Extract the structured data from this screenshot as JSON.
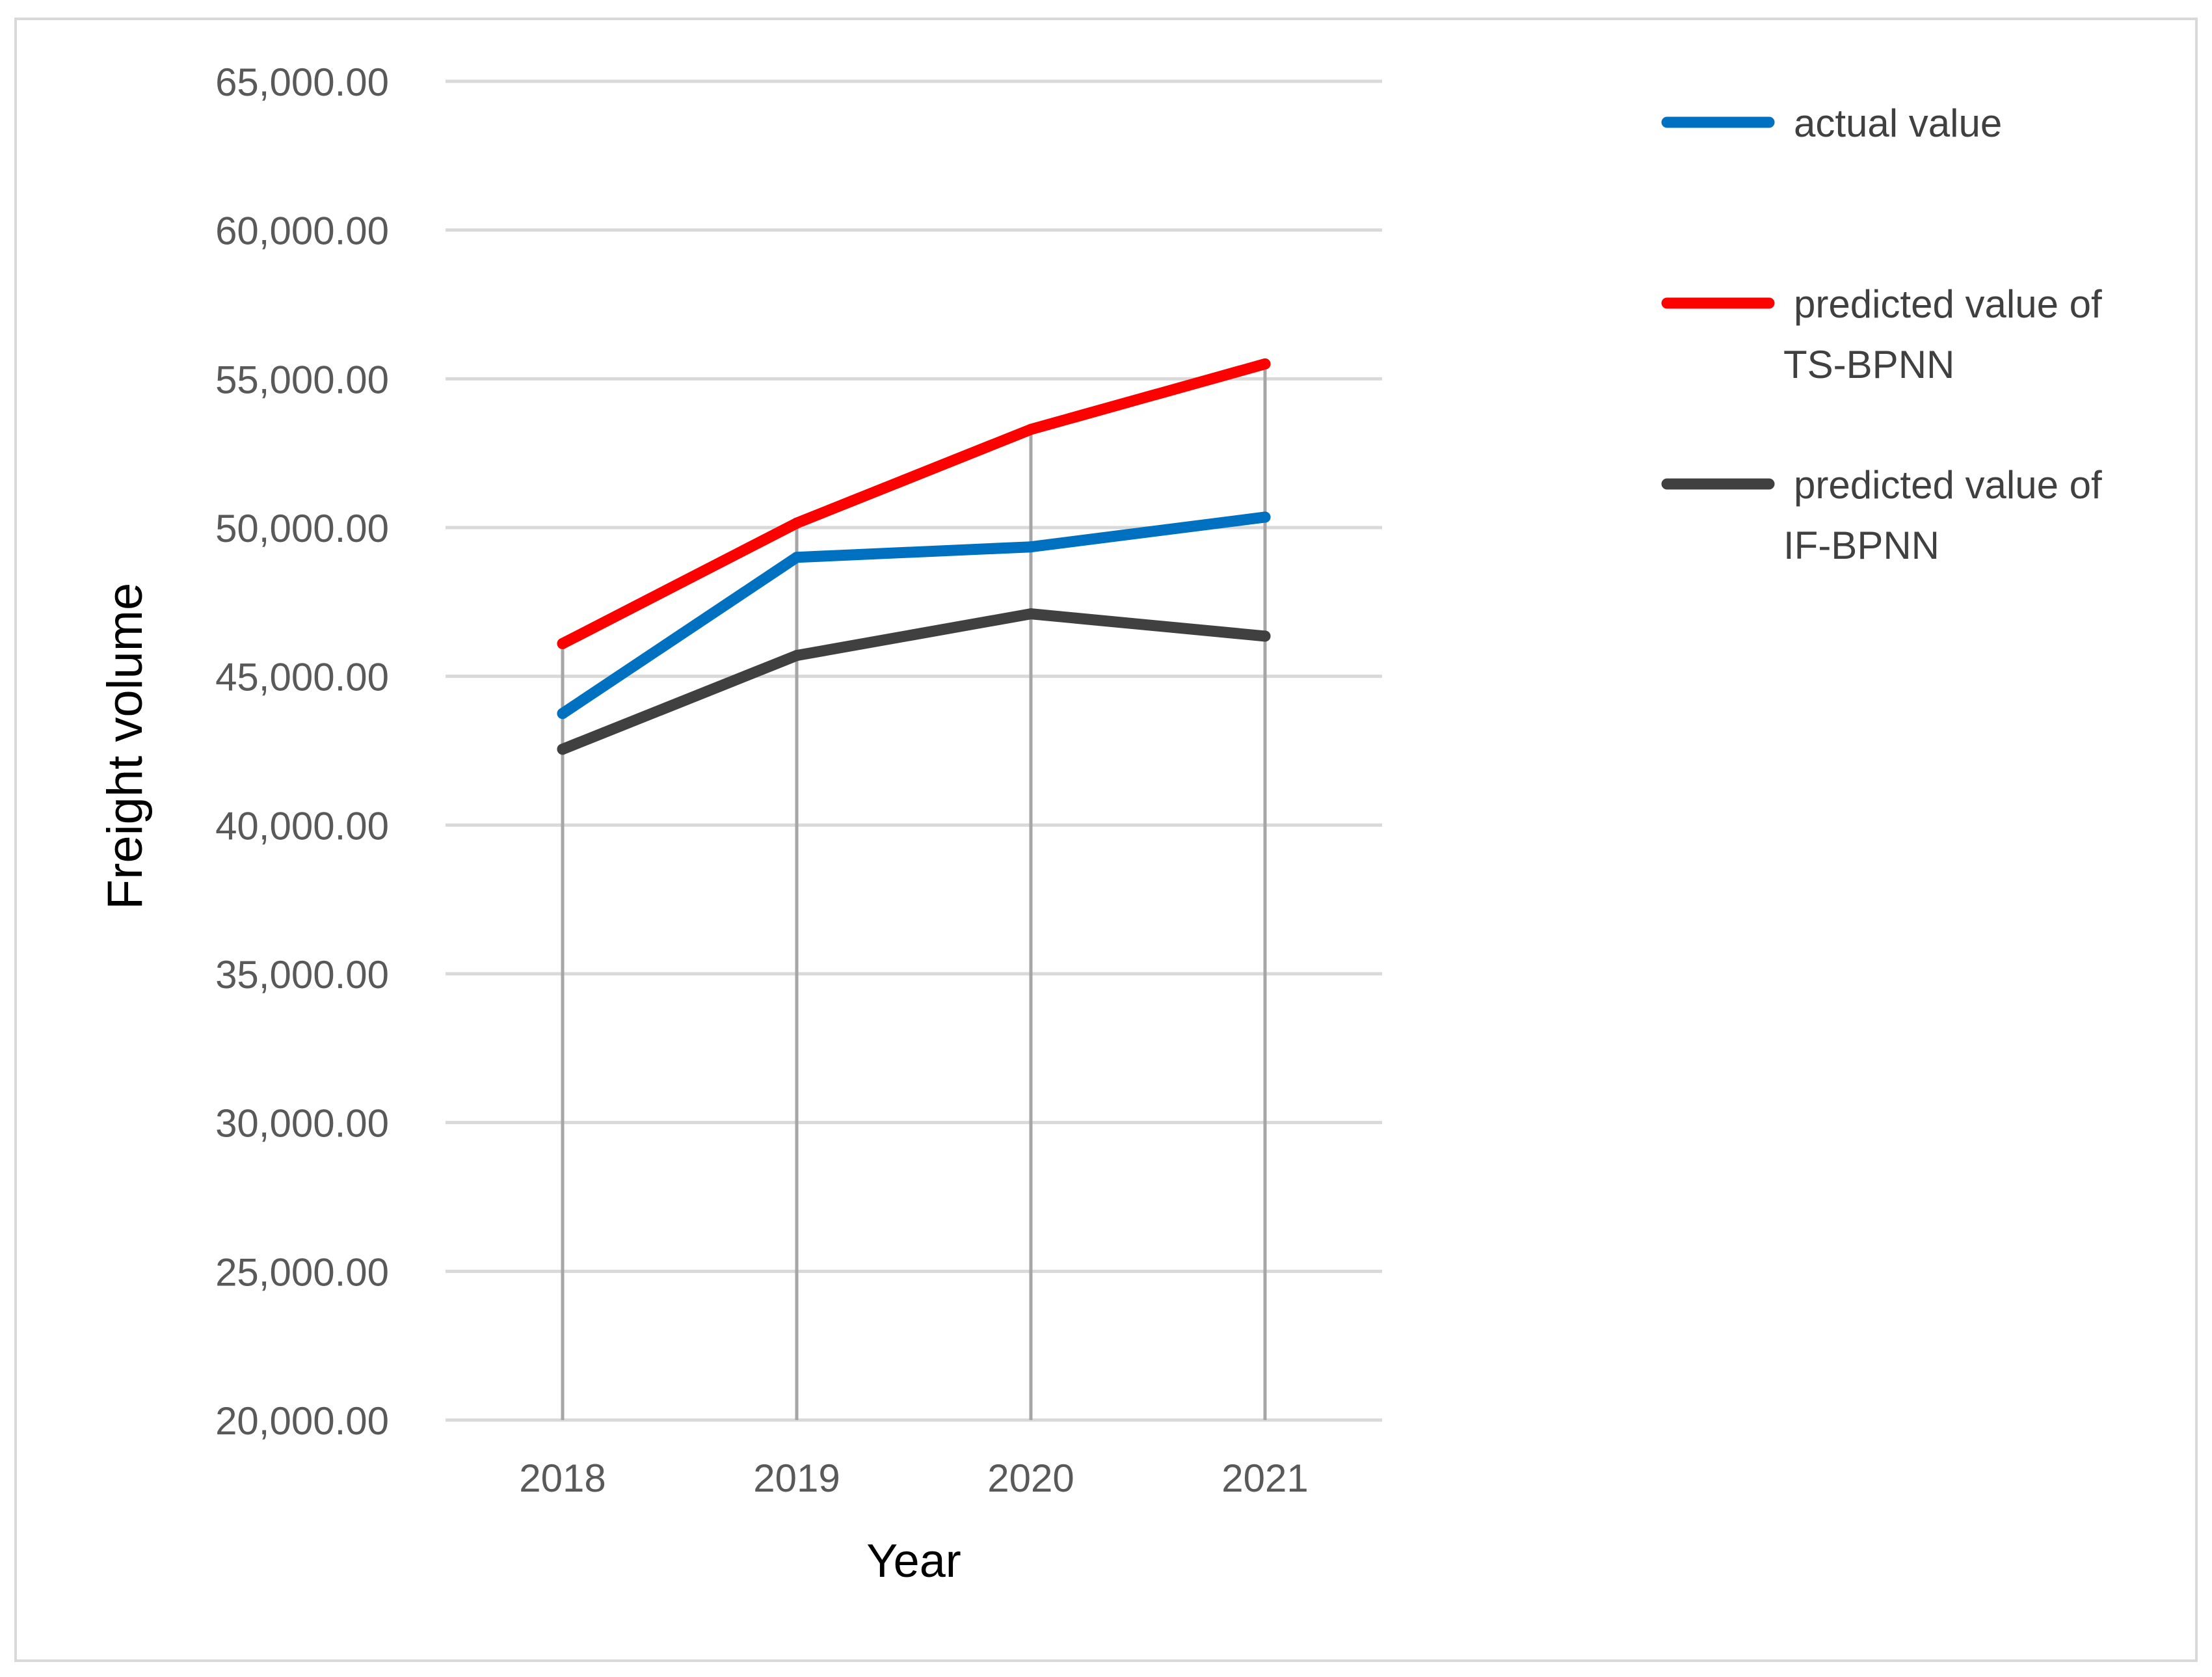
{
  "chart_data": {
    "type": "line",
    "title": "",
    "xlabel": "Year",
    "ylabel": "Freight volume",
    "categories": [
      "2018",
      "2019",
      "2020",
      "2021"
    ],
    "ylim": [
      20000,
      65000
    ],
    "yticks": [
      "20,000.00",
      "25,000.00",
      "30,000.00",
      "35,000.00",
      "40,000.00",
      "45,000.00",
      "50,000.00",
      "55,000.00",
      "60,000.00",
      "65,000.00"
    ],
    "ytick_values": [
      20000,
      25000,
      30000,
      35000,
      40000,
      45000,
      50000,
      55000,
      60000,
      65000
    ],
    "grid": "horizontal",
    "drop_lines": true,
    "legend_position": "right",
    "series": [
      {
        "name": "actual value",
        "legend_lines": [
          "actual value"
        ],
        "color": "#0070C0",
        "values": [
          43750,
          49000,
          49350,
          50350
        ]
      },
      {
        "name": "predicted value of TS-BPNN",
        "legend_lines": [
          "predicted value of",
          "TS-BPNN"
        ],
        "color": "#FF0000",
        "values": [
          46100,
          50150,
          53300,
          55500
        ]
      },
      {
        "name": "predicted value of IF-BPNN",
        "legend_lines": [
          "predicted value of",
          "IF-BPNN"
        ],
        "color": "#404040",
        "values": [
          42550,
          45700,
          47100,
          46350
        ]
      }
    ]
  }
}
